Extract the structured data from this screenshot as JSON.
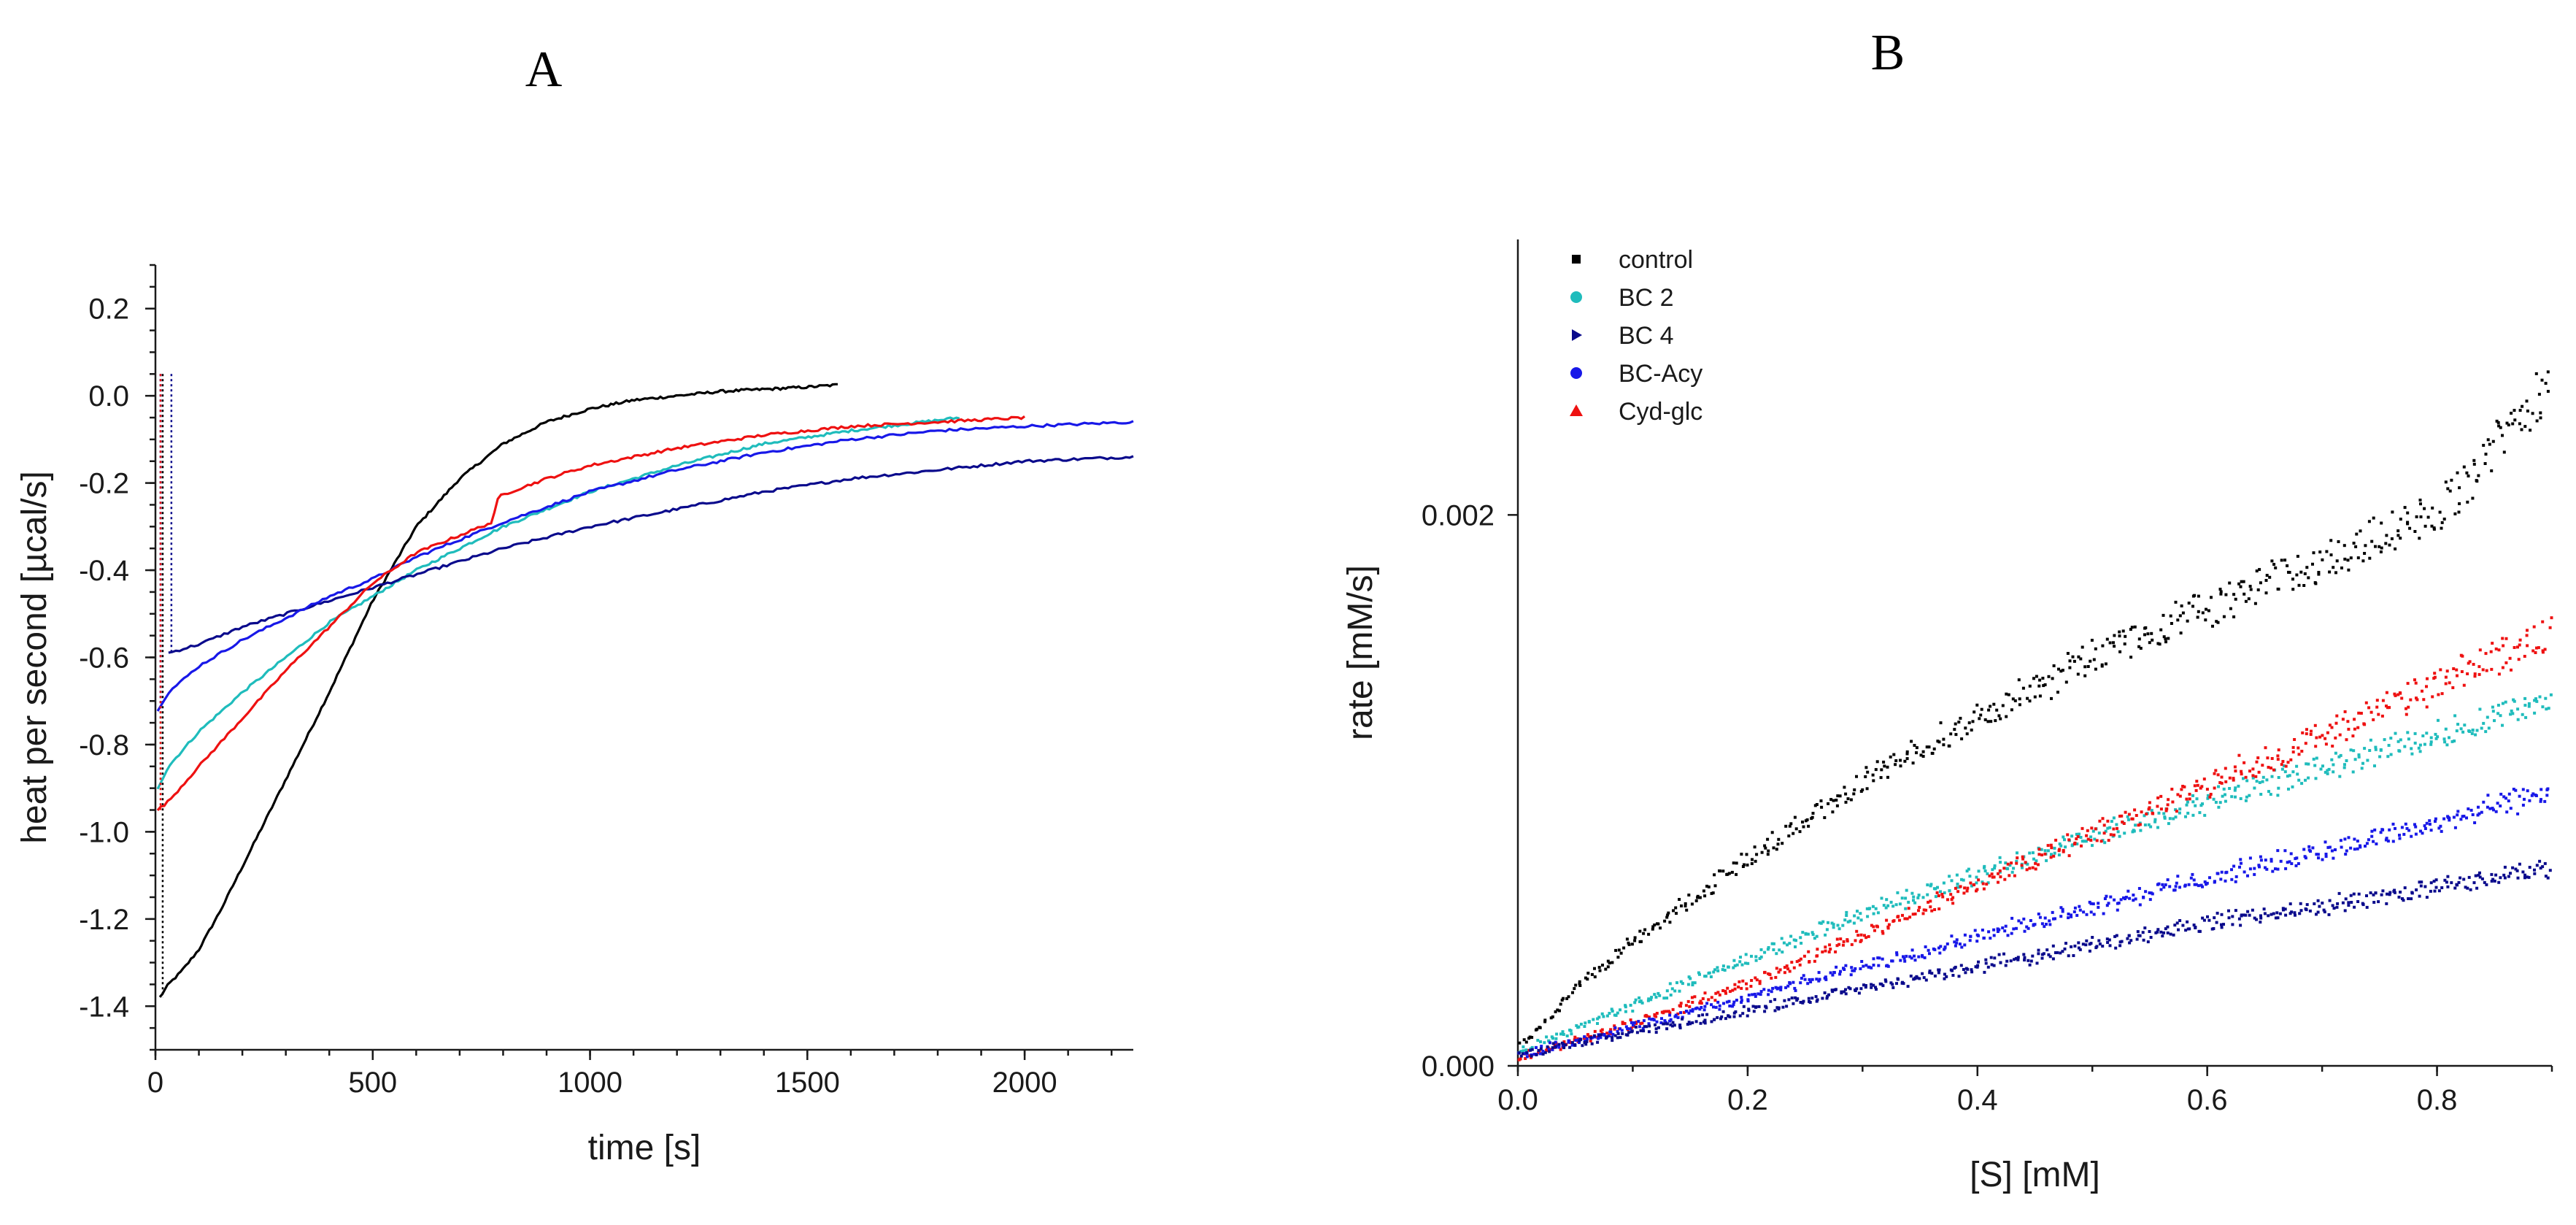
{
  "panel_labels": {
    "a": "A",
    "b": "B"
  },
  "colors": {
    "control": "#000000",
    "bc2": "#1fbcbc",
    "bc4": "#0a0a8c",
    "bcacy": "#1818e8",
    "cydglc": "#ee1111"
  },
  "chart_data": [
    {
      "id": "A",
      "type": "line",
      "title": "",
      "xlabel": "time [s]",
      "ylabel": "heat per second [µcal/s]",
      "xlim": [
        0,
        2250
      ],
      "ylim": [
        -1.5,
        0.3
      ],
      "xticks": [
        0,
        500,
        1000,
        1500,
        2000
      ],
      "xtick_labels": [
        "0",
        "500",
        "1000",
        "1500",
        "2000"
      ],
      "yticks": [
        0.2,
        0.0,
        -0.2,
        -0.4,
        -0.6,
        -0.8,
        -1.0,
        -1.2,
        -1.4
      ],
      "ytick_labels": [
        "0.2",
        "0.0",
        "-0.2",
        "-0.4",
        "-0.6",
        "-0.8",
        "-1.0",
        "-1.2",
        "-1.4"
      ],
      "series": [
        {
          "name": "control",
          "color": "#000000",
          "x": [
            10,
            30,
            60,
            100,
            150,
            200,
            300,
            400,
            500,
            600,
            700,
            800,
            900,
            1000,
            1100,
            1200,
            1300,
            1400,
            1500,
            1570
          ],
          "y": [
            -1.38,
            -1.35,
            -1.32,
            -1.27,
            -1.18,
            -1.08,
            -0.88,
            -0.68,
            -0.47,
            -0.3,
            -0.19,
            -0.11,
            -0.06,
            -0.03,
            -0.01,
            0.0,
            0.01,
            0.015,
            0.02,
            0.025
          ]
        },
        {
          "name": "BC 2",
          "color": "#1fbcbc",
          "x": [
            5,
            30,
            100,
            200,
            300,
            400,
            500,
            600,
            700,
            800,
            1000,
            1200,
            1400,
            1600,
            1850
          ],
          "y": [
            -0.9,
            -0.85,
            -0.77,
            -0.68,
            -0.6,
            -0.52,
            -0.46,
            -0.4,
            -0.35,
            -0.3,
            -0.22,
            -0.16,
            -0.11,
            -0.08,
            -0.05
          ]
        },
        {
          "name": "BC 4",
          "color": "#0a0a8c",
          "x": [
            30,
            100,
            200,
            300,
            400,
            500,
            600,
            700,
            800,
            1000,
            1200,
            1400,
            1600,
            1800,
            2000,
            2250
          ],
          "y": [
            -0.59,
            -0.57,
            -0.53,
            -0.5,
            -0.47,
            -0.44,
            -0.41,
            -0.38,
            -0.35,
            -0.3,
            -0.26,
            -0.22,
            -0.19,
            -0.17,
            -0.15,
            -0.14
          ]
        },
        {
          "name": "BC-Acy",
          "color": "#1818e8",
          "x": [
            5,
            30,
            100,
            200,
            300,
            400,
            500,
            600,
            700,
            800,
            1000,
            1200,
            1400,
            1600,
            1800,
            2000,
            2250
          ],
          "y": [
            -0.72,
            -0.68,
            -0.62,
            -0.56,
            -0.51,
            -0.46,
            -0.42,
            -0.37,
            -0.33,
            -0.29,
            -0.22,
            -0.17,
            -0.13,
            -0.1,
            -0.08,
            -0.07,
            -0.06
          ]
        },
        {
          "name": "Cyd-glc",
          "color": "#ee1111",
          "x": [
            5,
            30,
            100,
            200,
            300,
            400,
            500,
            600,
            700,
            775,
            790,
            900,
            1000,
            1200,
            1400,
            1600,
            1800,
            2000
          ],
          "y": [
            -0.95,
            -0.93,
            -0.85,
            -0.74,
            -0.63,
            -0.53,
            -0.43,
            -0.36,
            -0.32,
            -0.29,
            -0.23,
            -0.19,
            -0.16,
            -0.12,
            -0.09,
            -0.07,
            -0.06,
            -0.05
          ]
        }
      ]
    },
    {
      "id": "B",
      "type": "scatter",
      "title": "",
      "xlabel": "[S] [mM]",
      "ylabel": "rate [mM/s]",
      "xlim": [
        0,
        0.9
      ],
      "ylim": [
        0,
        0.003
      ],
      "xticks": [
        0.0,
        0.2,
        0.4,
        0.6,
        0.8
      ],
      "xtick_labels": [
        "0.0",
        "0.2",
        "0.4",
        "0.6",
        "0.8"
      ],
      "yticks": [
        0.0,
        0.002
      ],
      "ytick_labels": [
        "0.000",
        "0.002"
      ],
      "legend_position": "top-left",
      "legend": [
        "control",
        "BC 2",
        "BC 4",
        "BC-Acy",
        "Cyd-glc"
      ],
      "series": [
        {
          "name": "control",
          "color": "#000000",
          "marker": "square",
          "x": [
            0.0,
            0.05,
            0.1,
            0.2,
            0.3,
            0.4,
            0.5,
            0.6,
            0.7,
            0.8,
            0.9
          ],
          "y": [
            6e-05,
            0.00028,
            0.00045,
            0.00075,
            0.00103,
            0.00126,
            0.00148,
            0.00166,
            0.00183,
            0.002,
            0.0025
          ]
        },
        {
          "name": "BC 2",
          "color": "#1fbcbc",
          "marker": "circle",
          "x": [
            0.0,
            0.1,
            0.2,
            0.3,
            0.4,
            0.5,
            0.6,
            0.7,
            0.8,
            0.9
          ],
          "y": [
            5e-05,
            0.00022,
            0.00039,
            0.00055,
            0.00069,
            0.00083,
            0.00096,
            0.00108,
            0.0012,
            0.00134
          ]
        },
        {
          "name": "BC 4",
          "color": "#0a0a8c",
          "marker": "triangle-right",
          "x": [
            0.0,
            0.1,
            0.2,
            0.3,
            0.4,
            0.5,
            0.6,
            0.7,
            0.8,
            0.9
          ],
          "y": [
            4e-05,
            0.00012,
            0.0002,
            0.00028,
            0.00036,
            0.00044,
            0.00052,
            0.00058,
            0.00065,
            0.00072
          ]
        },
        {
          "name": "BC-Acy",
          "color": "#1818e8",
          "marker": "circle",
          "x": [
            0.0,
            0.1,
            0.2,
            0.3,
            0.4,
            0.5,
            0.6,
            0.7,
            0.8,
            0.9
          ],
          "y": [
            4e-05,
            0.00014,
            0.00025,
            0.00036,
            0.00047,
            0.00058,
            0.00068,
            0.00078,
            0.00088,
            0.001
          ]
        },
        {
          "name": "Cyd-glc",
          "color": "#ee1111",
          "marker": "triangle-up",
          "x": [
            0.0,
            0.1,
            0.2,
            0.3,
            0.4,
            0.5,
            0.6,
            0.7,
            0.8,
            0.9
          ],
          "y": [
            3e-05,
            0.00015,
            0.0003,
            0.00047,
            0.00066,
            0.00084,
            0.00102,
            0.0012,
            0.00138,
            0.00158
          ]
        }
      ]
    }
  ]
}
